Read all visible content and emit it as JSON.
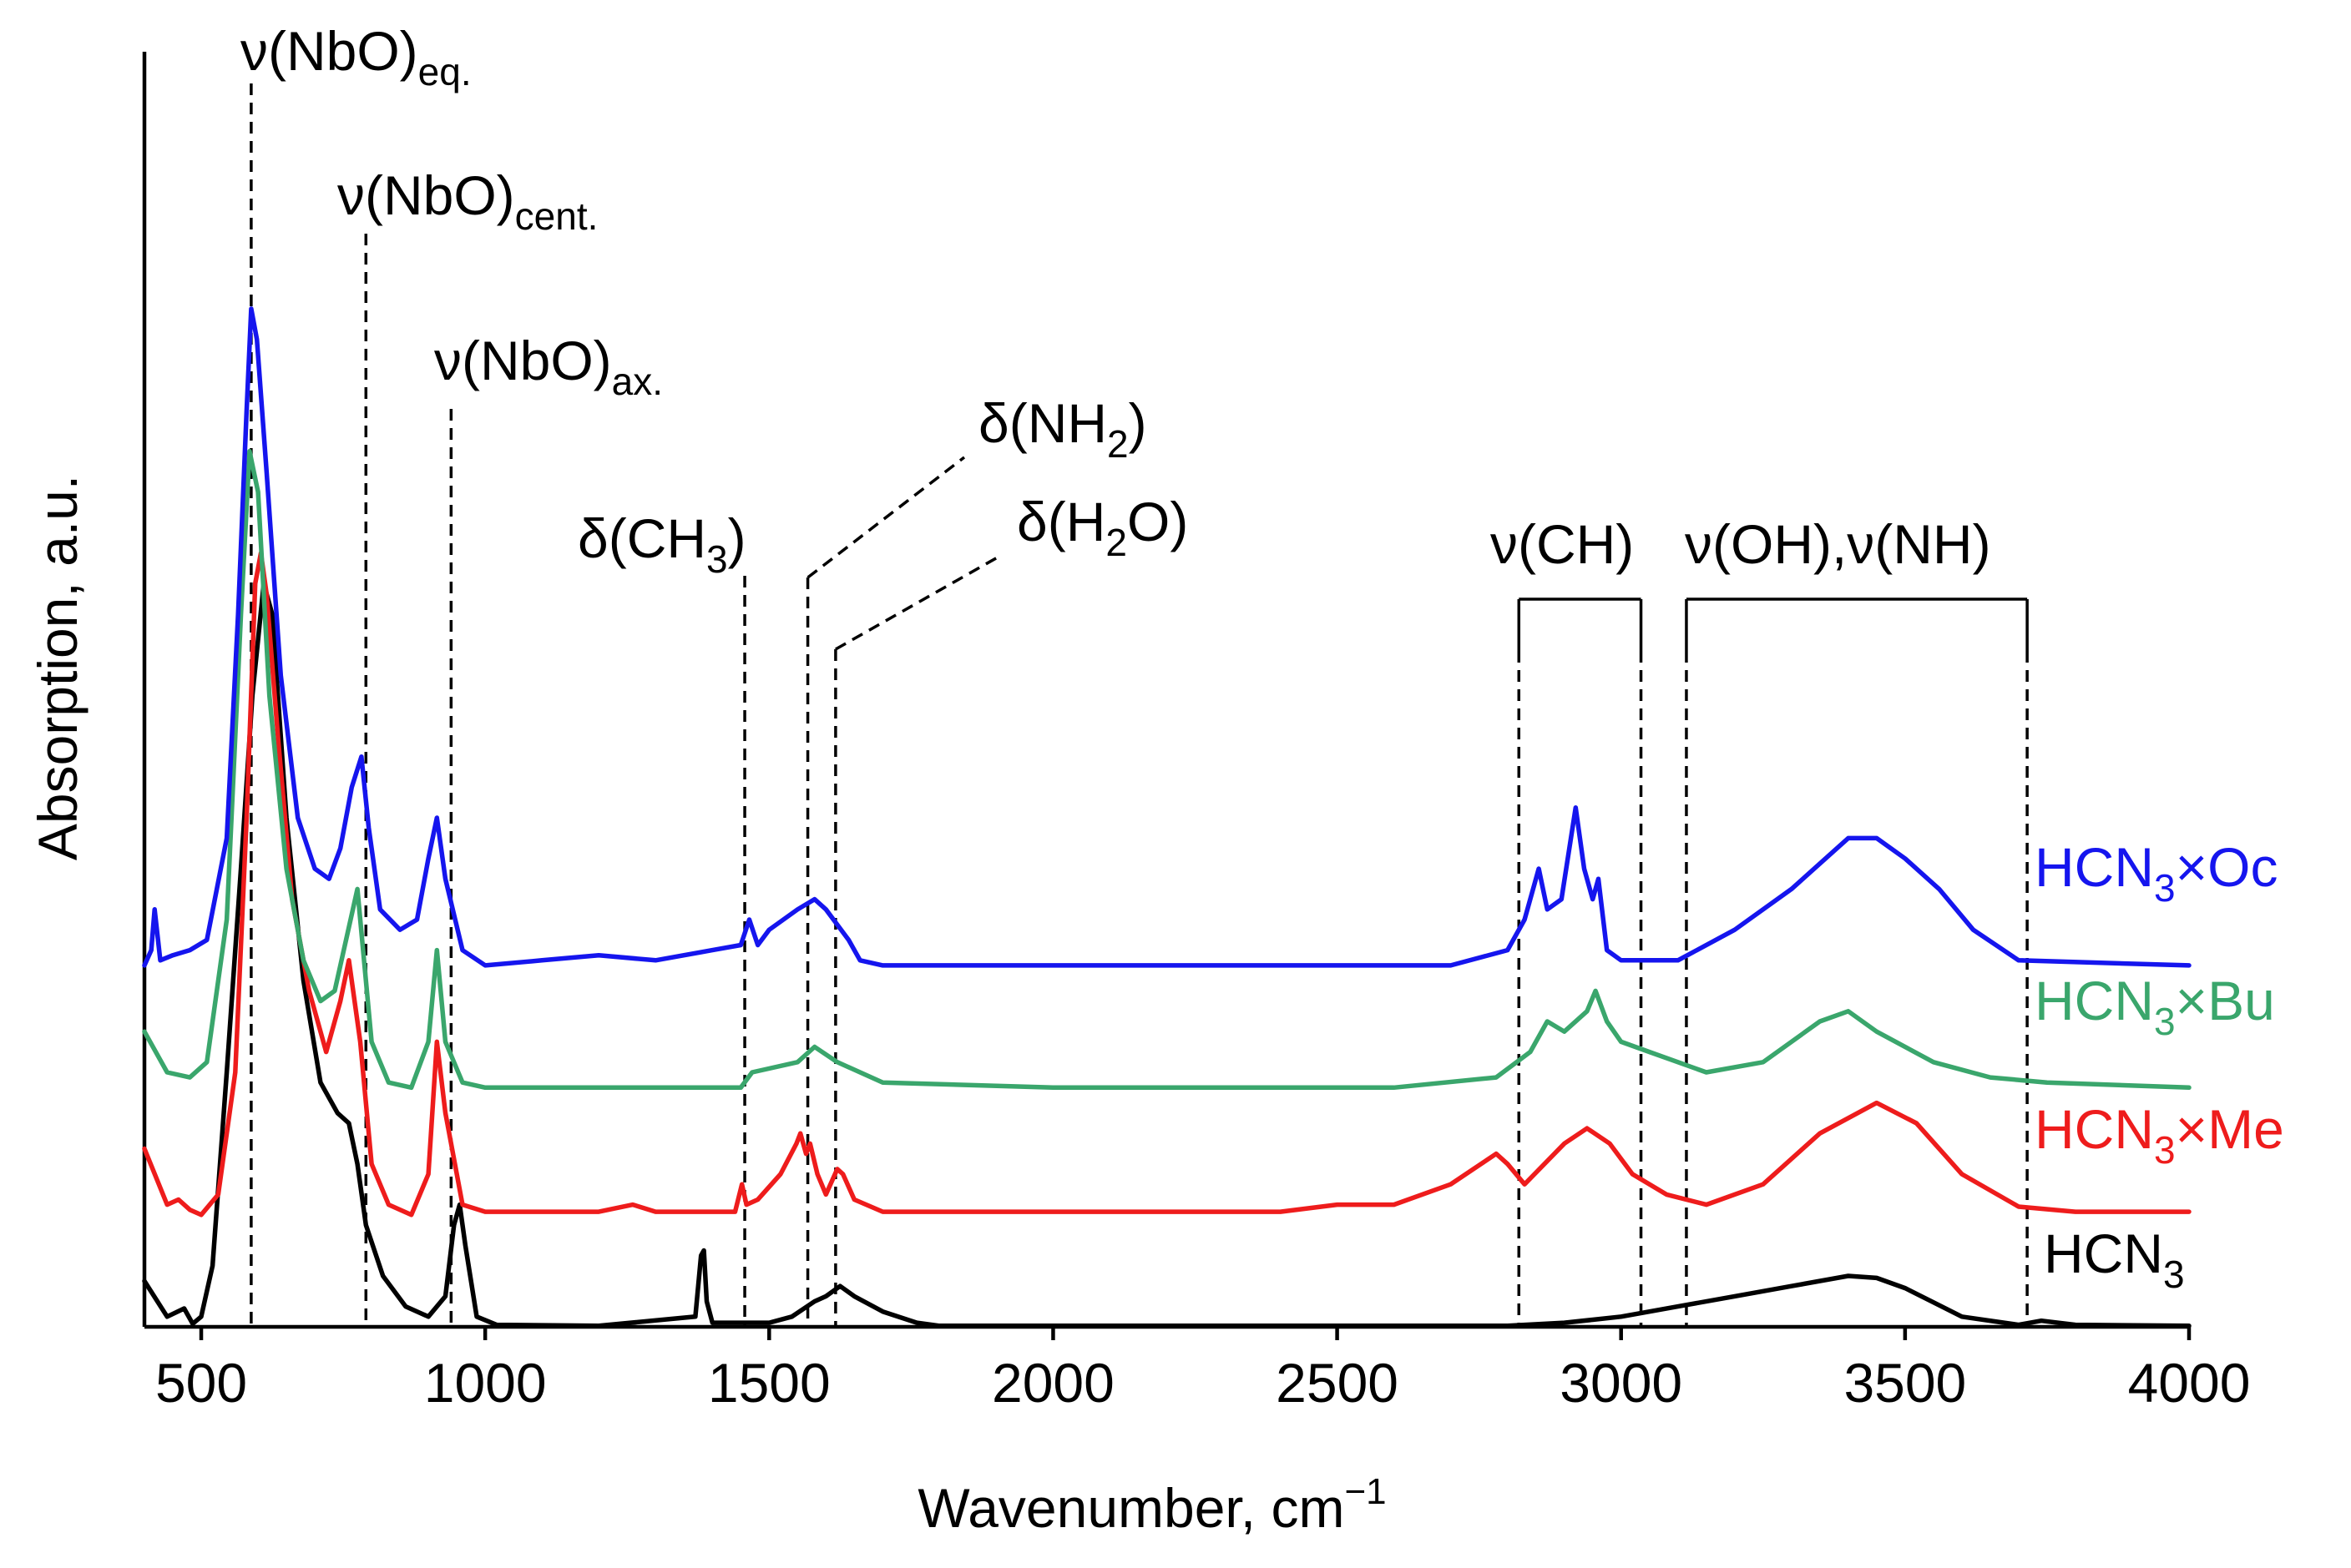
{
  "chart_data": {
    "type": "line",
    "title": "",
    "xlabel": "Wavenumber, cm",
    "xlabel_sup": "−1",
    "ylabel": "Absorption, a.u.",
    "xlim": [
      400,
      4000
    ],
    "ylim": [
      0,
      1.25
    ],
    "xticks": [
      500,
      1000,
      1500,
      2000,
      2500,
      3000,
      3500,
      4000
    ],
    "yticks_shown": false,
    "series": [
      {
        "name": "HCN3",
        "label_main": "HCN",
        "label_sub": "3",
        "label_tail": "",
        "color": "#000000",
        "x": [
          400,
          440,
          470,
          485,
          500,
          520,
          545,
          570,
          590,
          610,
          625,
          650,
          680,
          710,
          740,
          760,
          775,
          790,
          820,
          860,
          900,
          930,
          945,
          955,
          965,
          985,
          1020,
          1200,
          1370,
          1380,
          1385,
          1390,
          1400,
          1500,
          1540,
          1580,
          1600,
          1625,
          1650,
          1700,
          1760,
          1800,
          2800,
          2900,
          2950,
          3000,
          3100,
          3200,
          3300,
          3400,
          3450,
          3500,
          3550,
          3600,
          3700,
          3740,
          3800,
          4000
        ],
        "y": [
          0.045,
          0.01,
          0.018,
          0.003,
          0.01,
          0.06,
          0.25,
          0.45,
          0.62,
          0.73,
          0.7,
          0.5,
          0.34,
          0.24,
          0.21,
          0.2,
          0.16,
          0.1,
          0.05,
          0.02,
          0.01,
          0.03,
          0.1,
          0.12,
          0.08,
          0.01,
          0.002,
          0.001,
          0.01,
          0.07,
          0.075,
          0.025,
          0.004,
          0.004,
          0.01,
          0.025,
          0.03,
          0.04,
          0.03,
          0.015,
          0.004,
          0.001,
          0.001,
          0.004,
          0.007,
          0.01,
          0.02,
          0.03,
          0.04,
          0.05,
          0.048,
          0.038,
          0.024,
          0.01,
          0.002,
          0.006,
          0.002,
          0.001
        ]
      },
      {
        "name": "HCN3×Me",
        "label_main": "HCN",
        "label_sub": "3",
        "label_tail": "×Me",
        "color": "#ee1c1c",
        "x": [
          400,
          440,
          460,
          480,
          500,
          530,
          560,
          580,
          595,
          605,
          615,
          635,
          660,
          690,
          720,
          745,
          760,
          780,
          800,
          830,
          870,
          900,
          915,
          930,
          960,
          1000,
          1200,
          1260,
          1300,
          1440,
          1452,
          1460,
          1480,
          1520,
          1548,
          1555,
          1565,
          1572,
          1585,
          1600,
          1620,
          1630,
          1650,
          1700,
          2400,
          2500,
          2600,
          2700,
          2780,
          2800,
          2830,
          2900,
          2940,
          2980,
          3020,
          3080,
          3150,
          3250,
          3350,
          3450,
          3520,
          3600,
          3700,
          3800,
          4000
        ],
        "y": [
          0.175,
          0.12,
          0.125,
          0.115,
          0.11,
          0.13,
          0.25,
          0.5,
          0.73,
          0.76,
          0.72,
          0.58,
          0.42,
          0.33,
          0.27,
          0.32,
          0.36,
          0.28,
          0.16,
          0.12,
          0.11,
          0.15,
          0.28,
          0.21,
          0.12,
          0.113,
          0.113,
          0.12,
          0.113,
          0.113,
          0.14,
          0.12,
          0.125,
          0.15,
          0.18,
          0.19,
          0.17,
          0.18,
          0.15,
          0.13,
          0.155,
          0.15,
          0.125,
          0.113,
          0.113,
          0.12,
          0.12,
          0.14,
          0.17,
          0.16,
          0.14,
          0.18,
          0.195,
          0.18,
          0.15,
          0.13,
          0.12,
          0.14,
          0.19,
          0.22,
          0.2,
          0.15,
          0.118,
          0.113,
          0.113
        ]
      },
      {
        "name": "HCN3×Bu",
        "label_main": "HCN",
        "label_sub": "3",
        "label_tail": "×Bu",
        "color": "#3aa66c",
        "x": [
          400,
          440,
          480,
          510,
          545,
          570,
          585,
          600,
          620,
          650,
          680,
          710,
          735,
          755,
          775,
          785,
          800,
          830,
          870,
          900,
          915,
          930,
          960,
          1000,
          1200,
          1450,
          1470,
          1550,
          1580,
          1620,
          1700,
          2000,
          2600,
          2780,
          2840,
          2870,
          2900,
          2940,
          2955,
          2975,
          3000,
          3050,
          3150,
          3250,
          3350,
          3400,
          3450,
          3550,
          3650,
          3750,
          4000
        ],
        "y": [
          0.29,
          0.25,
          0.245,
          0.26,
          0.4,
          0.7,
          0.86,
          0.82,
          0.62,
          0.45,
          0.36,
          0.32,
          0.33,
          0.38,
          0.43,
          0.37,
          0.28,
          0.24,
          0.235,
          0.28,
          0.37,
          0.28,
          0.24,
          0.235,
          0.235,
          0.235,
          0.25,
          0.26,
          0.275,
          0.26,
          0.24,
          0.235,
          0.235,
          0.245,
          0.27,
          0.3,
          0.29,
          0.31,
          0.33,
          0.3,
          0.28,
          0.27,
          0.25,
          0.26,
          0.3,
          0.31,
          0.29,
          0.26,
          0.245,
          0.24,
          0.235
        ]
      },
      {
        "name": "HCN3×Oc",
        "label_main": "HCN",
        "label_sub": "3",
        "label_tail": "×Oc",
        "color": "#1515ee",
        "x": [
          400,
          412,
          418,
          428,
          450,
          480,
          510,
          545,
          565,
          580,
          588,
          598,
          615,
          640,
          670,
          700,
          725,
          745,
          765,
          782,
          795,
          815,
          850,
          880,
          900,
          915,
          930,
          960,
          1000,
          1100,
          1200,
          1300,
          1400,
          1450,
          1465,
          1480,
          1500,
          1550,
          1580,
          1600,
          1640,
          1660,
          1700,
          1800,
          2700,
          2800,
          2830,
          2855,
          2870,
          2895,
          2920,
          2935,
          2950,
          2960,
          2975,
          3000,
          3100,
          3200,
          3300,
          3400,
          3450,
          3500,
          3560,
          3620,
          3700,
          4000
        ],
        "y": [
          0.355,
          0.37,
          0.41,
          0.36,
          0.365,
          0.37,
          0.38,
          0.48,
          0.7,
          0.9,
          1.0,
          0.97,
          0.84,
          0.64,
          0.5,
          0.45,
          0.44,
          0.47,
          0.53,
          0.56,
          0.49,
          0.41,
          0.39,
          0.4,
          0.46,
          0.5,
          0.44,
          0.37,
          0.355,
          0.36,
          0.365,
          0.36,
          0.37,
          0.375,
          0.4,
          0.375,
          0.39,
          0.41,
          0.42,
          0.41,
          0.38,
          0.36,
          0.355,
          0.355,
          0.355,
          0.37,
          0.4,
          0.45,
          0.41,
          0.42,
          0.51,
          0.45,
          0.42,
          0.44,
          0.37,
          0.36,
          0.36,
          0.39,
          0.43,
          0.48,
          0.48,
          0.46,
          0.43,
          0.39,
          0.36,
          0.355
        ]
      }
    ],
    "annotations": [
      {
        "id": "nbo-eq",
        "text": "ν(NbO)",
        "sub": "eq.",
        "at_x": 588
      },
      {
        "id": "nbo-cent",
        "text": "ν(NbO)",
        "sub": "cent.",
        "at_x": 790
      },
      {
        "id": "nbo-ax",
        "text": "ν(NbO)",
        "sub": "ax.",
        "at_x": 940
      },
      {
        "id": "ch3",
        "text": "δ(CH",
        "sub": "3",
        "tail": ")",
        "at_x": 1457
      },
      {
        "id": "nh2",
        "text": "δ(NH",
        "sub": "2",
        "tail": ")",
        "at_x": 1568
      },
      {
        "id": "h2o",
        "text": "δ(H",
        "sub": "2",
        "tail": "O)",
        "at_x": 1617
      },
      {
        "id": "ch",
        "text": "ν(CH)",
        "range": [
          2820,
          3035
        ]
      },
      {
        "id": "oh-nh",
        "text": "ν(OH),ν(NH)",
        "range": [
          3115,
          3715
        ]
      }
    ]
  }
}
